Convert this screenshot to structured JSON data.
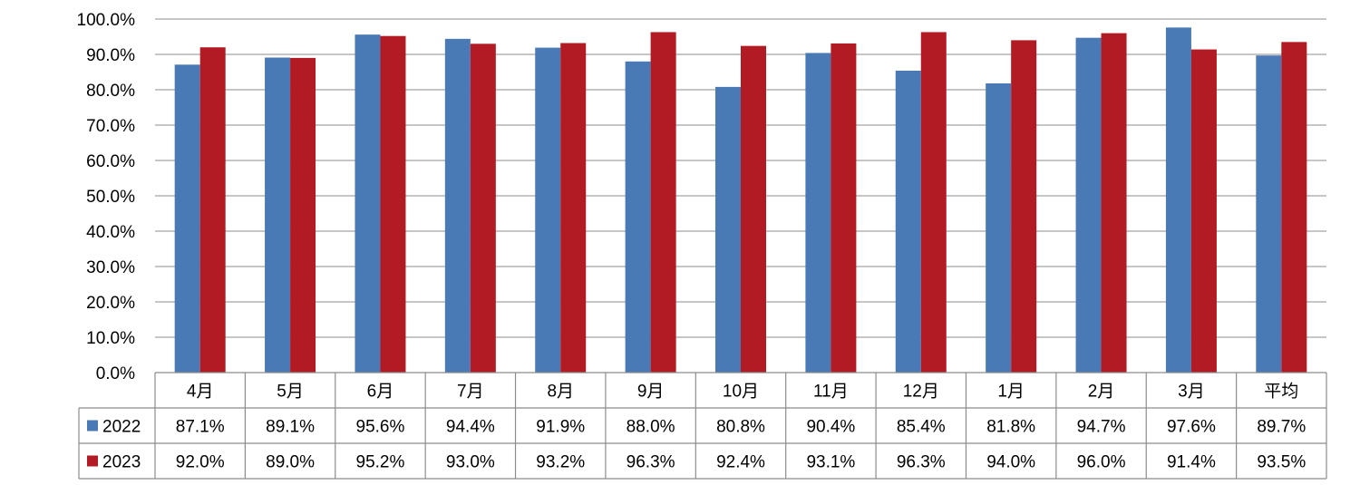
{
  "chart_data": {
    "type": "bar",
    "categories": [
      "4月",
      "5月",
      "6月",
      "7月",
      "8月",
      "9月",
      "10月",
      "11月",
      "12月",
      "1月",
      "2月",
      "3月",
      "平均"
    ],
    "series": [
      {
        "name": "2022",
        "color": "#4a7ab5",
        "values": [
          87.1,
          89.1,
          95.6,
          94.4,
          91.9,
          88.0,
          80.8,
          90.4,
          85.4,
          81.8,
          94.7,
          97.6,
          89.7
        ],
        "labels": [
          "87.1%",
          "89.1%",
          "95.6%",
          "94.4%",
          "91.9%",
          "88.0%",
          "80.8%",
          "90.4%",
          "85.4%",
          "81.8%",
          "94.7%",
          "97.6%",
          "89.7%"
        ]
      },
      {
        "name": "2023",
        "color": "#b31b24",
        "values": [
          92.0,
          89.0,
          95.2,
          93.0,
          93.2,
          96.3,
          92.4,
          93.1,
          96.3,
          94.0,
          96.0,
          91.4,
          93.5
        ],
        "labels": [
          "92.0%",
          "89.0%",
          "95.2%",
          "93.0%",
          "93.2%",
          "96.3%",
          "92.4%",
          "93.1%",
          "96.3%",
          "94.0%",
          "96.0%",
          "91.4%",
          "93.5%"
        ]
      }
    ],
    "ylim": [
      0,
      100
    ],
    "yticks": [
      "0.0%",
      "10.0%",
      "20.0%",
      "30.0%",
      "40.0%",
      "50.0%",
      "60.0%",
      "70.0%",
      "80.0%",
      "90.0%",
      "100.0%"
    ],
    "grid": true,
    "legend": "data-table"
  }
}
